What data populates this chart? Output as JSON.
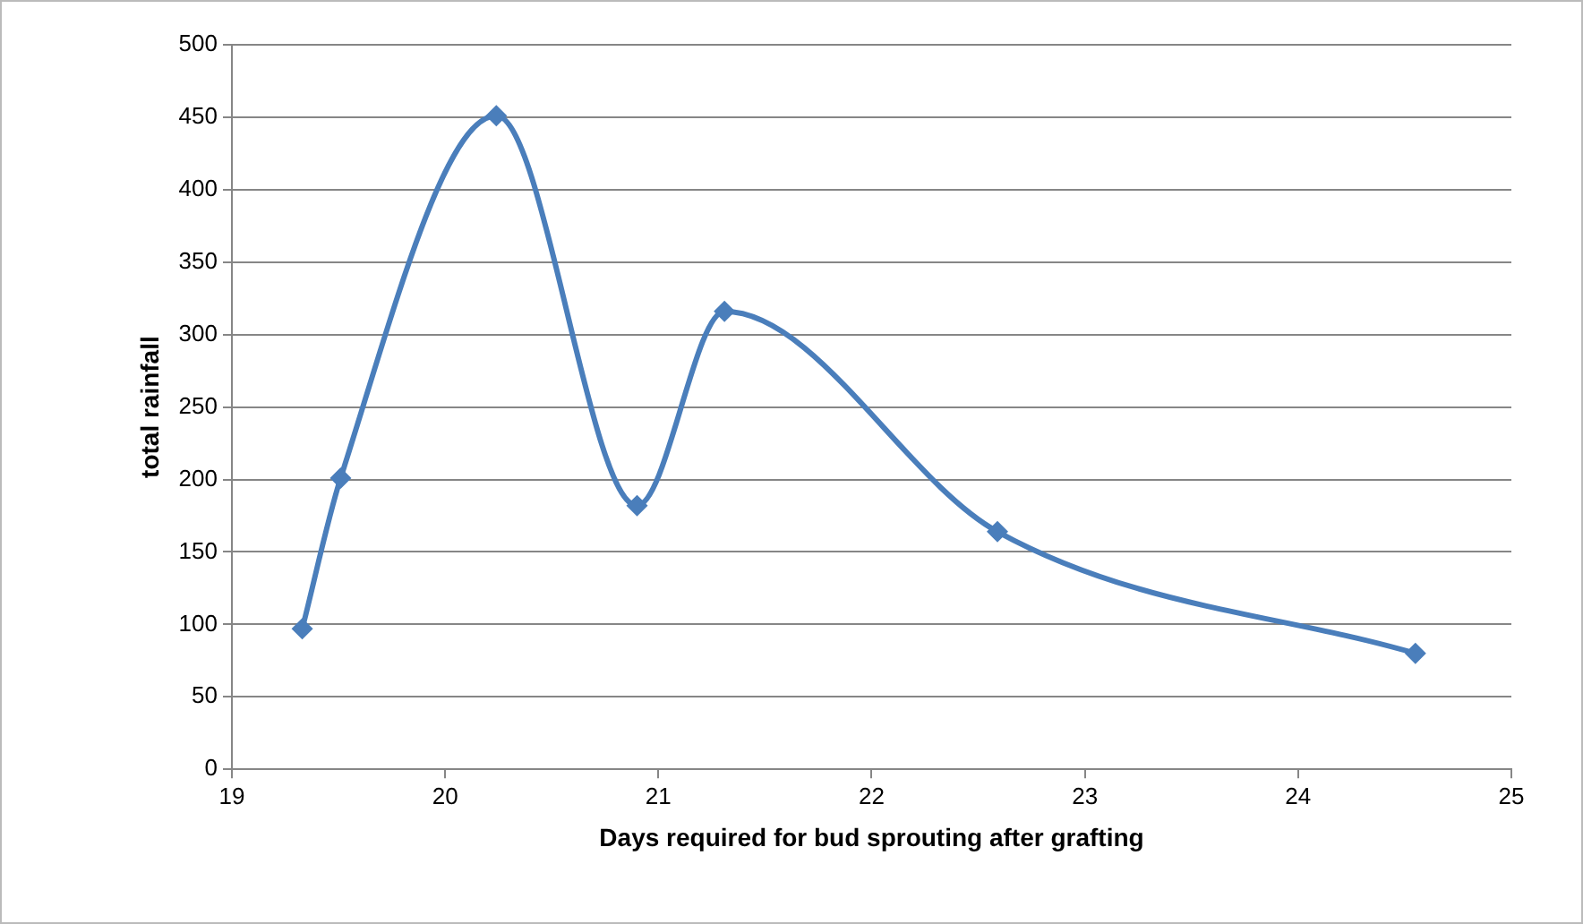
{
  "chart_data": {
    "type": "line",
    "xlabel": "Days required for bud sprouting after grafting",
    "ylabel": "total rainfall",
    "x": [
      19.33,
      19.51,
      20.24,
      20.9,
      21.31,
      22.59,
      24.55
    ],
    "series": [
      {
        "color": "#4a7ebb",
        "values": [
          97,
          201,
          451,
          182,
          316,
          164,
          80
        ]
      }
    ],
    "xlim": [
      19,
      25
    ],
    "xticks": [
      19,
      20,
      21,
      22,
      23,
      24,
      25
    ],
    "ylim": [
      0,
      500
    ],
    "yticks": [
      0,
      50,
      100,
      150,
      200,
      250,
      300,
      350,
      400,
      450,
      500
    ],
    "grid": "y",
    "legend": false,
    "marker": "diamond",
    "line_style": "solid"
  }
}
